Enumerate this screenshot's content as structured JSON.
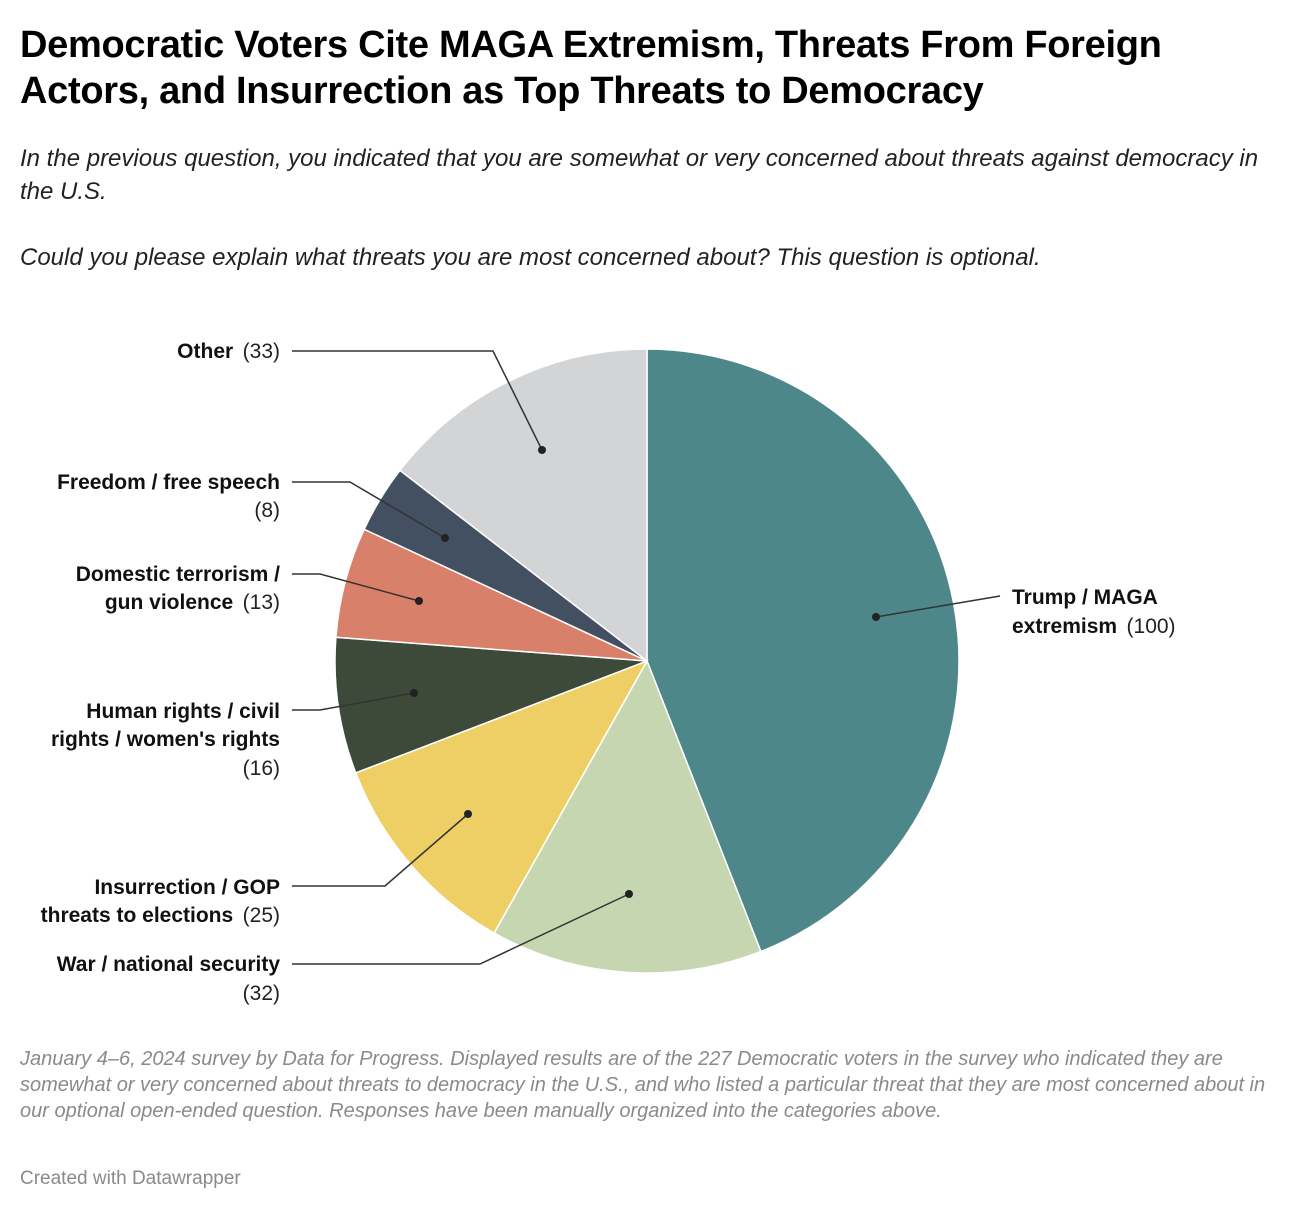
{
  "header": {
    "title": "Democratic Voters Cite MAGA Extremism, Threats From Foreign Actors, and Insurrection as Top Threats to Democracy",
    "subtitle_line1": "In the previous question, you indicated that you are somewhat or very concerned about threats against democracy in the U.S.",
    "subtitle_line2": "Could you please explain what threats you are most concerned about? This question is optional."
  },
  "chart_data": {
    "type": "pie",
    "title": "Democratic Voters Cite MAGA Extremism, Threats From Foreign Actors, and Insurrection as Top Threats to Democracy",
    "total": 227,
    "slices": [
      {
        "label": "Trump / MAGA extremism",
        "value": 100,
        "color": "#4e8789"
      },
      {
        "label": "War / national security",
        "value": 32,
        "color": "#c6d6b0"
      },
      {
        "label": "Insurrection / GOP threats to elections",
        "value": 25,
        "color": "#eecf66"
      },
      {
        "label": "Human rights / civil rights / women's rights",
        "value": 16,
        "color": "#3d4a3a"
      },
      {
        "label": "Domestic terrorism / gun violence",
        "value": 13,
        "color": "#d9806a"
      },
      {
        "label": "Freedom / free speech",
        "value": 8,
        "color": "#435061"
      },
      {
        "label": "Other",
        "value": 33,
        "color": "#d3d4d6"
      }
    ]
  },
  "labels": {
    "trump": {
      "line1": "Trump / MAGA",
      "line2": "extremism",
      "count": "(100)"
    },
    "war": {
      "line1": "War / national security",
      "count": "(32)"
    },
    "insurrection": {
      "line1": "Insurrection / GOP",
      "line2": "threats to elections",
      "count": "(25)"
    },
    "human_rights": {
      "line1": "Human rights / civil",
      "line2": "rights / women's rights",
      "count": "(16)"
    },
    "domestic": {
      "line1": "Domestic terrorism /",
      "line2": "gun violence",
      "count": "(13)"
    },
    "freedom": {
      "line1": "Freedom / free speech",
      "count": "(8)"
    },
    "other": {
      "line1": "Other",
      "count": "(33)"
    }
  },
  "footer": {
    "notes": "January 4–6, 2024 survey by Data for Progress. Displayed results are of the 227 Democratic voters in the survey who indicated they are somewhat or very concerned about threats to democracy in the U.S., and who listed a particular threat that they are most concerned about in our optional open-ended question. Responses have been manually organized into the categories above.",
    "credit": "Created with Datawrapper"
  }
}
